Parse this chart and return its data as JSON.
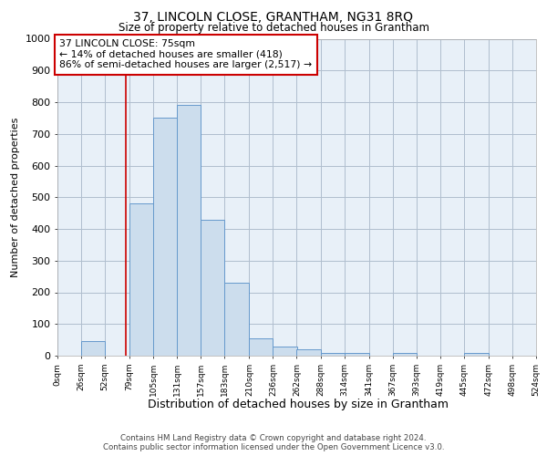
{
  "title1": "37, LINCOLN CLOSE, GRANTHAM, NG31 8RQ",
  "title2": "Size of property relative to detached houses in Grantham",
  "xlabel": "Distribution of detached houses by size in Grantham",
  "ylabel": "Number of detached properties",
  "footer1": "Contains HM Land Registry data © Crown copyright and database right 2024.",
  "footer2": "Contains public sector information licensed under the Open Government Licence v3.0.",
  "annotation_line1": "37 LINCOLN CLOSE: 75sqm",
  "annotation_line2": "← 14% of detached houses are smaller (418)",
  "annotation_line3": "86% of semi-detached houses are larger (2,517) →",
  "bins": [
    0,
    26,
    52,
    79,
    105,
    131,
    157,
    183,
    210,
    236,
    262,
    288,
    314,
    341,
    367,
    393,
    419,
    445,
    472,
    498,
    524
  ],
  "values": [
    0,
    45,
    0,
    480,
    750,
    790,
    430,
    230,
    55,
    30,
    20,
    10,
    10,
    0,
    8,
    0,
    0,
    10,
    0,
    0
  ],
  "bar_color": "#ccdded",
  "bar_edge_color": "#6699cc",
  "bg_color": "#e8f0f8",
  "grid_color": "#b0bece",
  "ref_line_x": 75,
  "ref_line_color": "#cc0000",
  "annotation_box_color": "#ffffff",
  "annotation_box_edge": "#cc0000",
  "ylim": [
    0,
    1000
  ],
  "xlim": [
    0,
    524
  ],
  "xtick_labels": [
    "0sqm",
    "26sqm",
    "52sqm",
    "79sqm",
    "105sqm",
    "131sqm",
    "157sqm",
    "183sqm",
    "210sqm",
    "236sqm",
    "262sqm",
    "288sqm",
    "314sqm",
    "341sqm",
    "367sqm",
    "393sqm",
    "419sqm",
    "445sqm",
    "472sqm",
    "498sqm",
    "524sqm"
  ],
  "yticks": [
    0,
    100,
    200,
    300,
    400,
    500,
    600,
    700,
    800,
    900,
    1000
  ]
}
